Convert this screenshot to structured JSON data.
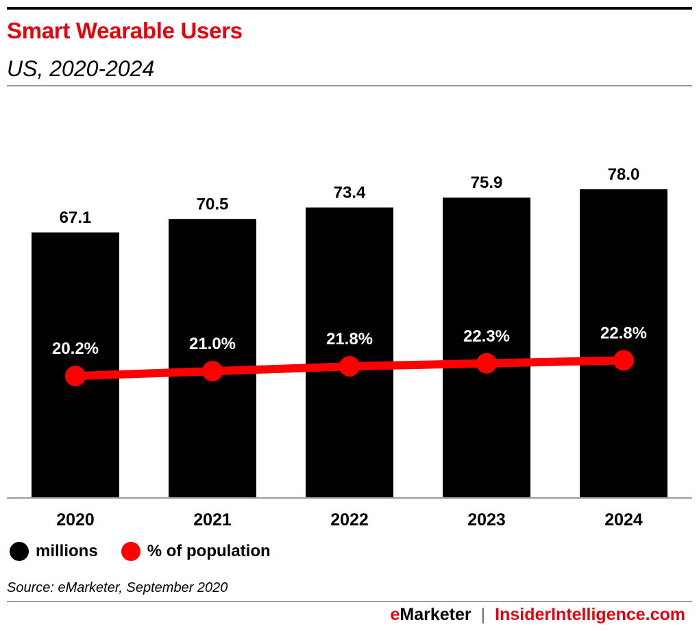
{
  "header": {
    "title": "Smart Wearable Users",
    "subtitle": "US, 2020-2024"
  },
  "chart_data": {
    "type": "bar",
    "title": "Smart Wearable Users",
    "subtitle": "US, 2020-2024",
    "categories": [
      "2020",
      "2021",
      "2022",
      "2023",
      "2024"
    ],
    "series": [
      {
        "name": "millions",
        "type": "bar",
        "values": [
          67.1,
          70.5,
          73.4,
          75.9,
          78.0
        ],
        "labels": [
          "67.1",
          "70.5",
          "73.4",
          "75.9",
          "78.0"
        ],
        "color": "#000000"
      },
      {
        "name": "% of population",
        "type": "line",
        "values": [
          20.2,
          21.0,
          21.8,
          22.3,
          22.8
        ],
        "labels": [
          "20.2%",
          "21.0%",
          "21.8%",
          "22.3%",
          "22.8%"
        ],
        "color": "#ff0000"
      }
    ],
    "bar_ylim": [
      0,
      78
    ],
    "line_ylim": [
      0,
      50
    ],
    "grid": false,
    "legend_position": "bottom-left"
  },
  "legend": {
    "items": [
      {
        "label": "millions",
        "color": "#000000"
      },
      {
        "label": "% of population",
        "color": "#ff0000"
      }
    ]
  },
  "source": "Source: eMarketer, September 2020",
  "footer": {
    "brand_e": "e",
    "brand_rest": "Marketer",
    "separator": "|",
    "brand2": "InsiderIntelligence.com"
  }
}
